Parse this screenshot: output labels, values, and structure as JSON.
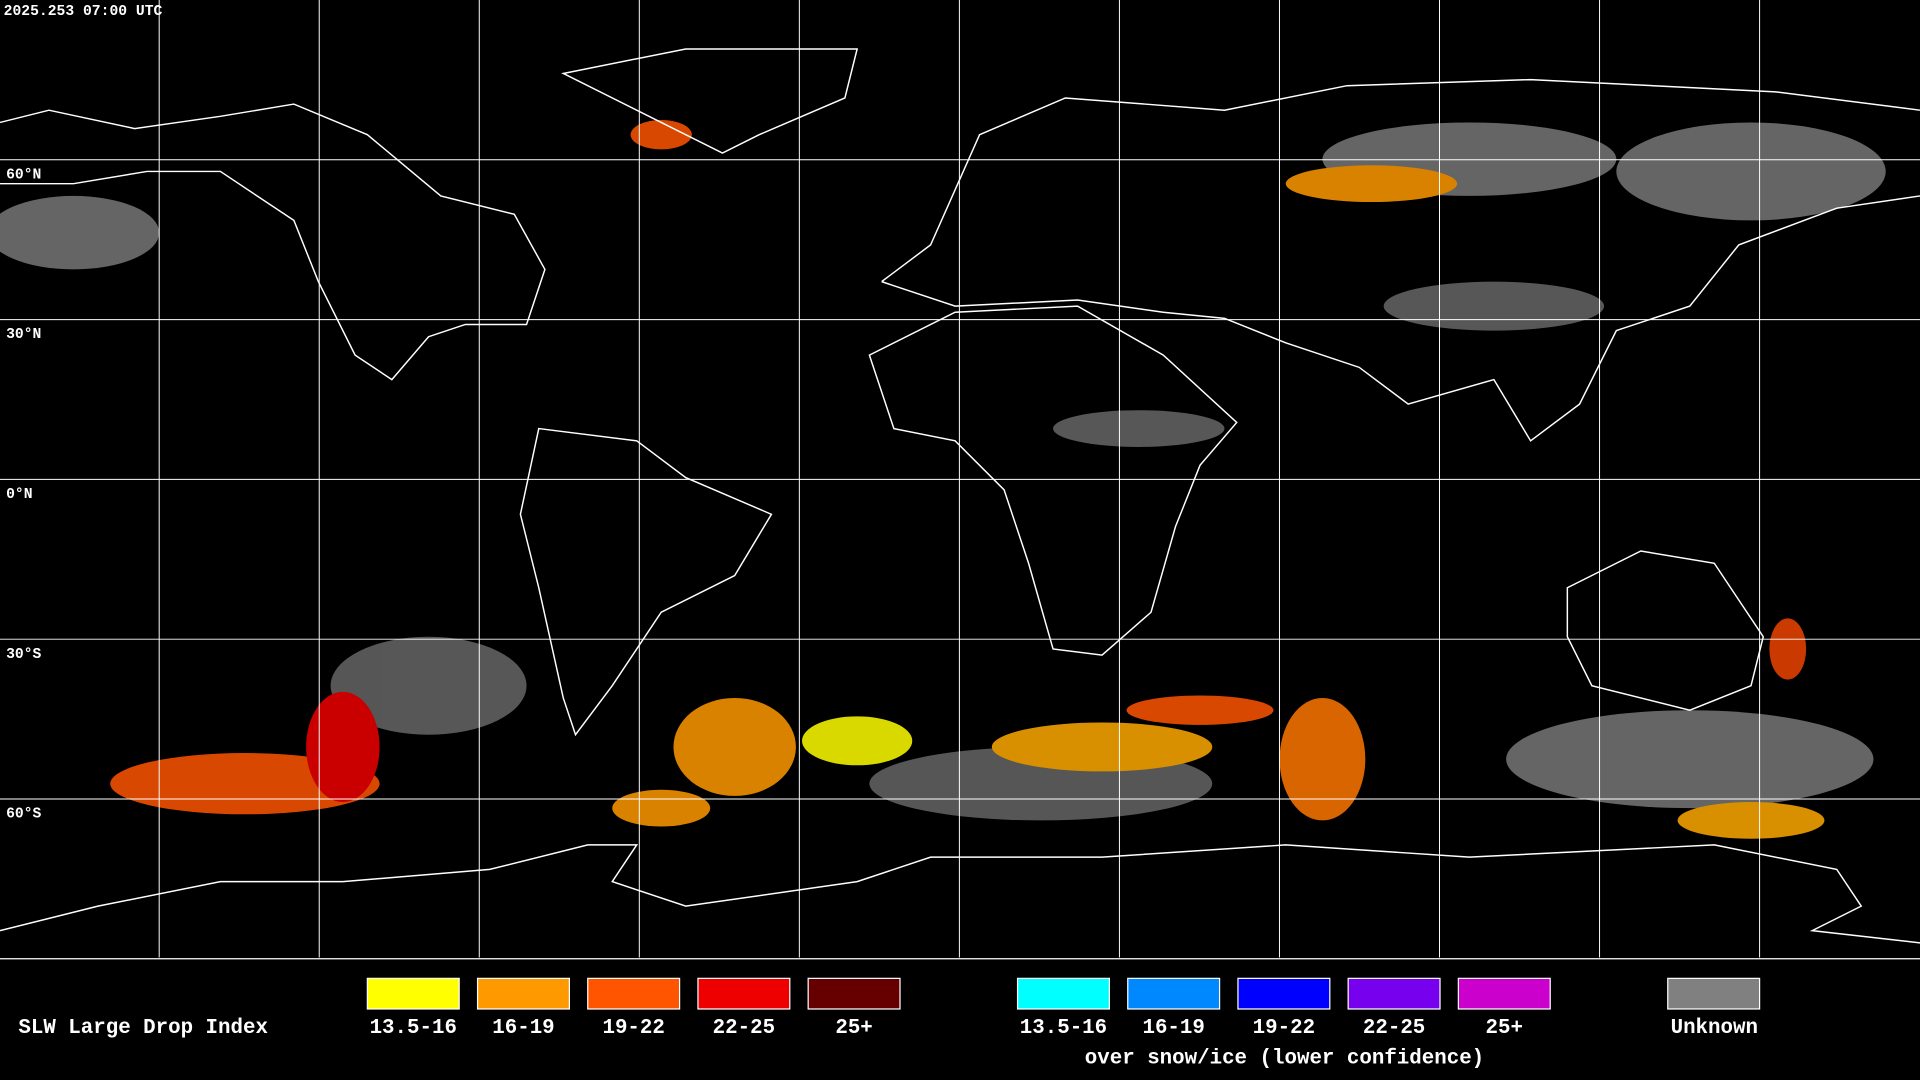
{
  "header": {
    "timestamp": "2025.253 07:00 UTC"
  },
  "map": {
    "latitude_labels": [
      "60°N",
      "30°N",
      "0°N",
      "30°S",
      "60°S"
    ]
  },
  "legend": {
    "title": "SLW Large Drop Index",
    "items": [
      {
        "label": "13.5-16",
        "color": "#ffff00"
      },
      {
        "label": "16-19",
        "color": "#ff9900"
      },
      {
        "label": "19-22",
        "color": "#ff5500"
      },
      {
        "label": "22-25",
        "color": "#ee0000"
      },
      {
        "label": "25+",
        "color": "#660000"
      }
    ],
    "snow_items": [
      {
        "label": "13.5-16",
        "color": "#00ffff"
      },
      {
        "label": "16-19",
        "color": "#0088ff"
      },
      {
        "label": "19-22",
        "color": "#0000ff"
      },
      {
        "label": "22-25",
        "color": "#7700ee"
      },
      {
        "label": "25+",
        "color": "#cc00cc"
      }
    ],
    "snow_caption": "over snow/ice (lower confidence)",
    "unknown": {
      "label": "Unknown",
      "color": "#808080"
    }
  }
}
